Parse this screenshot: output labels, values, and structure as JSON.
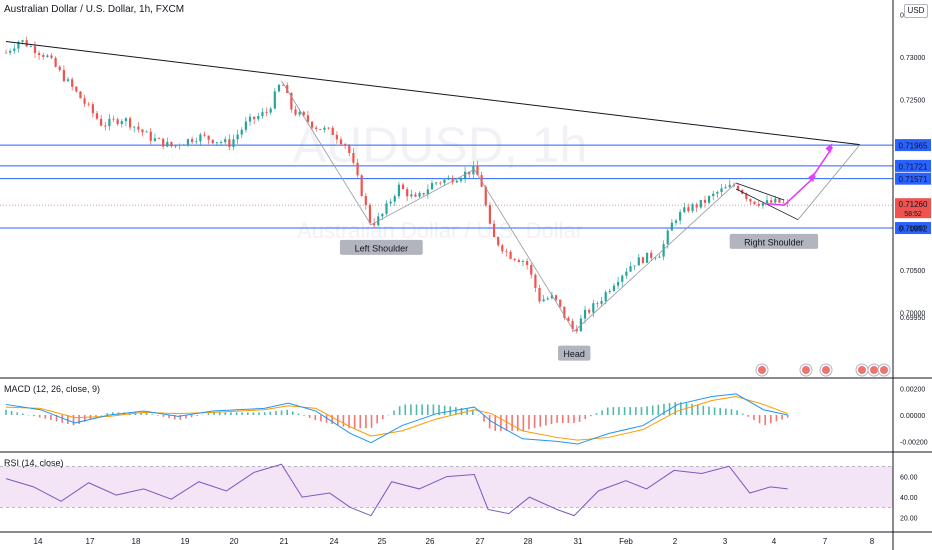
{
  "header": {
    "title": "Australian Dollar / U.S. Dollar, 1h, FXCM",
    "currency": "USD"
  },
  "watermark": {
    "symbol": "AUDUSD, 1h",
    "name": "Australian Dollar / U.S. Dollar"
  },
  "colors": {
    "up": "#26a69a",
    "down": "#ef5350",
    "level": "#2962ff",
    "pattern_line": "#9598a1",
    "trendline": "#131722",
    "projection": "#e040fb",
    "macd": "#2196f3",
    "signal": "#ff9800",
    "rsi": "#7e57c2",
    "rsi_band": "#f3e5f5"
  },
  "chart_data": [
    {
      "type": "candlestick",
      "title": "Australian Dollar / U.S. Dollar, 1h, FXCM",
      "ylim": [
        0.6935,
        0.7355
      ],
      "x_ticks": [
        "14",
        "17",
        "18",
        "19",
        "20",
        "21",
        "24",
        "25",
        "26",
        "27",
        "28",
        "31",
        "Feb",
        "2",
        "3",
        "4",
        "7",
        "8"
      ],
      "y_ticks": [
        0.6995,
        0.7,
        0.705,
        0.71,
        0.725,
        0.73,
        0.735
      ],
      "y_tick_labels": [
        "0.69950",
        "0.70000",
        "0.70500",
        "0.71000",
        "0.72500",
        "0.73000",
        "0.73500"
      ],
      "horizontal_levels": [
        {
          "value": 0.71965,
          "label": "0.71965"
        },
        {
          "value": 0.71721,
          "label": "0.71721"
        },
        {
          "value": 0.71571,
          "label": "0.71571"
        },
        {
          "value": 0.70992,
          "label": "0.70992"
        }
      ],
      "current_price": {
        "value": 0.7126,
        "label": "0.71260",
        "countdown": "58:52"
      },
      "price_path": [
        [
          0,
          0.7305
        ],
        [
          0.4,
          0.732
        ],
        [
          1.2,
          0.73
        ],
        [
          2.1,
          0.7255
        ],
        [
          2.8,
          0.722
        ],
        [
          3.4,
          0.7228
        ],
        [
          4.2,
          0.7205
        ],
        [
          4.8,
          0.7195
        ],
        [
          5.6,
          0.7207
        ],
        [
          6.5,
          0.7198
        ],
        [
          7.0,
          0.7223
        ],
        [
          7.6,
          0.7236
        ],
        [
          8.0,
          0.7272
        ],
        [
          8.3,
          0.7238
        ],
        [
          9.0,
          0.7218
        ],
        [
          9.5,
          0.7211
        ],
        [
          9.9,
          0.7196
        ],
        [
          10.3,
          0.7145
        ],
        [
          10.6,
          0.7103
        ],
        [
          10.9,
          0.7113
        ],
        [
          11.4,
          0.7148
        ],
        [
          11.9,
          0.7132
        ],
        [
          12.4,
          0.7152
        ],
        [
          13.0,
          0.7158
        ],
        [
          13.6,
          0.7168
        ],
        [
          13.8,
          0.7152
        ],
        [
          14.1,
          0.709
        ],
        [
          14.6,
          0.7068
        ],
        [
          15.1,
          0.706
        ],
        [
          15.5,
          0.7015
        ],
        [
          15.9,
          0.7018
        ],
        [
          16.3,
          0.699
        ],
        [
          16.5,
          0.6978
        ],
        [
          16.8,
          0.6998
        ],
        [
          17.2,
          0.7012
        ],
        [
          17.7,
          0.7038
        ],
        [
          18.2,
          0.7058
        ],
        [
          18.6,
          0.7065
        ],
        [
          19.0,
          0.707
        ],
        [
          19.4,
          0.711
        ],
        [
          19.8,
          0.7122
        ],
        [
          20.2,
          0.7128
        ],
        [
          20.7,
          0.7142
        ],
        [
          21.2,
          0.715
        ],
        [
          21.6,
          0.7132
        ],
        [
          22.0,
          0.7128
        ],
        [
          22.4,
          0.713
        ],
        [
          22.7,
          0.7126
        ]
      ],
      "annotations": [
        {
          "text": "Left Shoulder",
          "x": 10.9,
          "y": 0.709
        },
        {
          "text": "Head",
          "x": 16.5,
          "y": 0.6966
        },
        {
          "text": "Right Shoulder",
          "x": 22.3,
          "y": 0.7097
        }
      ],
      "trendlines": [
        {
          "name": "resistance",
          "points": [
            [
              0,
              0.7318
            ],
            [
              24.8,
              0.7197
            ]
          ]
        },
        {
          "name": "wedge-upper",
          "points": [
            [
              21.2,
              0.7152
            ],
            [
              22.6,
              0.7132
            ]
          ]
        },
        {
          "name": "wedge-lower",
          "points": [
            [
              21.2,
              0.7145
            ],
            [
              23.0,
              0.7109
            ]
          ]
        },
        {
          "name": "projection-lower",
          "points": [
            [
              23.0,
              0.7109
            ],
            [
              24.8,
              0.7197
            ]
          ]
        }
      ],
      "projection_arrow": [
        [
          22.0,
          0.7128
        ],
        [
          22.6,
          0.7126
        ],
        [
          23.5,
          0.716
        ],
        [
          23.4,
          0.7158
        ],
        [
          24.0,
          0.7194
        ]
      ],
      "pattern_zigzag": [
        [
          8.0,
          0.7272
        ],
        [
          10.6,
          0.7103
        ],
        [
          13.6,
          0.7168
        ],
        [
          16.5,
          0.6978
        ],
        [
          21.2,
          0.7152
        ]
      ]
    },
    {
      "type": "line",
      "title": "MACD (12, 26, close, 9)",
      "ylim": [
        -0.0025,
        0.0025
      ],
      "y_ticks": [
        0.002,
        0.0,
        -0.002
      ],
      "y_tick_labels": [
        "0.00200",
        "0.00000",
        "-0.00200"
      ],
      "series": [
        {
          "name": "MACD",
          "values": [
            [
              0,
              0.0008
            ],
            [
              1.0,
              0.0004
            ],
            [
              2.0,
              -0.0006
            ],
            [
              3.0,
              0.0
            ],
            [
              4.0,
              0.0003
            ],
            [
              5.0,
              -0.0001
            ],
            [
              6.0,
              0.0003
            ],
            [
              7.5,
              0.0005
            ],
            [
              8.2,
              0.0009
            ],
            [
              9.0,
              0.0003
            ],
            [
              10.0,
              -0.0014
            ],
            [
              10.6,
              -0.0021
            ],
            [
              11.5,
              -0.0008
            ],
            [
              12.5,
              0.0001
            ],
            [
              13.6,
              0.0006
            ],
            [
              14.1,
              -0.0005
            ],
            [
              15.0,
              -0.0018
            ],
            [
              16.0,
              -0.002
            ],
            [
              16.6,
              -0.0022
            ],
            [
              17.5,
              -0.0014
            ],
            [
              18.5,
              -0.0008
            ],
            [
              19.5,
              0.0008
            ],
            [
              20.5,
              0.0014
            ],
            [
              21.2,
              0.0016
            ],
            [
              22.0,
              0.0004
            ],
            [
              22.7,
              0.0
            ]
          ]
        },
        {
          "name": "Signal",
          "values": [
            [
              0,
              0.0006
            ],
            [
              1.0,
              0.0005
            ],
            [
              2.0,
              -0.0002
            ],
            [
              3.0,
              -0.0001
            ],
            [
              4.0,
              0.0002
            ],
            [
              5.0,
              0.0001
            ],
            [
              6.0,
              0.0002
            ],
            [
              7.5,
              0.0004
            ],
            [
              8.2,
              0.0007
            ],
            [
              9.0,
              0.0005
            ],
            [
              10.0,
              -0.0009
            ],
            [
              10.6,
              -0.0016
            ],
            [
              11.5,
              -0.0012
            ],
            [
              12.5,
              -0.0003
            ],
            [
              13.6,
              0.0004
            ],
            [
              14.1,
              0.0001
            ],
            [
              15.0,
              -0.0012
            ],
            [
              16.0,
              -0.0017
            ],
            [
              16.6,
              -0.0019
            ],
            [
              17.5,
              -0.0017
            ],
            [
              18.5,
              -0.0011
            ],
            [
              19.5,
              0.0003
            ],
            [
              20.5,
              0.0011
            ],
            [
              21.2,
              0.0014
            ],
            [
              22.0,
              0.0008
            ],
            [
              22.7,
              0.0001
            ]
          ]
        }
      ]
    },
    {
      "type": "line",
      "title": "RSI (14, close)",
      "ylim": [
        10,
        80
      ],
      "y_ticks": [
        60,
        40,
        20
      ],
      "y_tick_labels": [
        "60.00",
        "40.00",
        "20.00"
      ],
      "band": [
        30,
        70
      ],
      "series": [
        {
          "name": "RSI",
          "values": [
            [
              0,
              58
            ],
            [
              0.8,
              50
            ],
            [
              1.6,
              36
            ],
            [
              2.4,
              54
            ],
            [
              3.2,
              42
            ],
            [
              4.0,
              48
            ],
            [
              4.8,
              38
            ],
            [
              5.6,
              55
            ],
            [
              6.4,
              46
            ],
            [
              7.2,
              64
            ],
            [
              8.0,
              72
            ],
            [
              8.6,
              40
            ],
            [
              9.4,
              44
            ],
            [
              10.0,
              30
            ],
            [
              10.6,
              22
            ],
            [
              11.2,
              55
            ],
            [
              12.0,
              48
            ],
            [
              12.8,
              60
            ],
            [
              13.6,
              62
            ],
            [
              14.0,
              28
            ],
            [
              14.6,
              24
            ],
            [
              15.2,
              40
            ],
            [
              16.0,
              28
            ],
            [
              16.5,
              22
            ],
            [
              17.2,
              46
            ],
            [
              18.0,
              56
            ],
            [
              18.6,
              48
            ],
            [
              19.4,
              66
            ],
            [
              20.2,
              63
            ],
            [
              21.0,
              70
            ],
            [
              21.6,
              44
            ],
            [
              22.2,
              50
            ],
            [
              22.7,
              48
            ]
          ]
        }
      ]
    }
  ]
}
